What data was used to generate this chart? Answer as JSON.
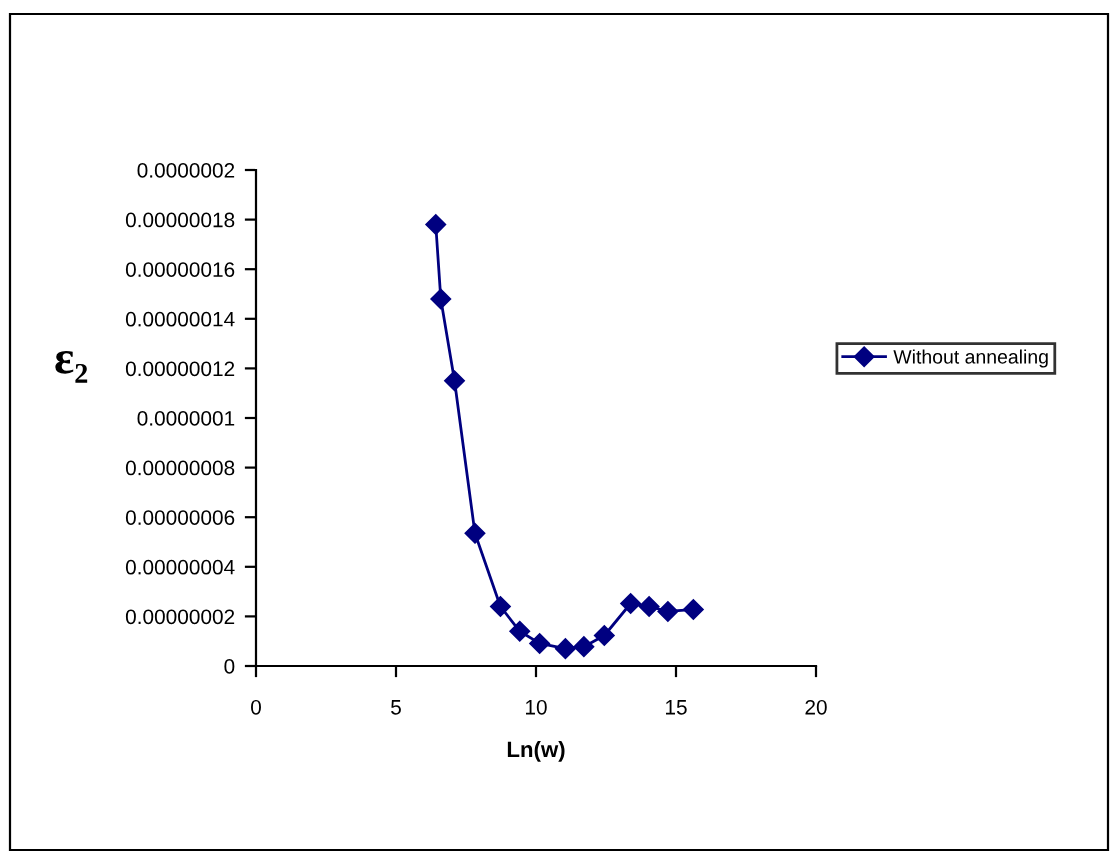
{
  "chart_data": {
    "type": "line",
    "xlabel": "Ln(w)",
    "ylabel": "ε₂",
    "x": [
      6.42,
      6.6,
      7.09,
      7.82,
      8.73,
      9.42,
      10.13,
      11.05,
      11.71,
      12.44,
      13.38,
      14.04,
      14.71,
      15.62
    ],
    "series": [
      {
        "name": "Without annealing",
        "color": "#000080",
        "values": [
          1.78e-07,
          1.48e-07,
          1.15e-07,
          5.35e-08,
          2.4e-08,
          1.4e-08,
          9.1e-09,
          7e-09,
          7.8e-09,
          1.23e-08,
          2.52e-08,
          2.4e-08,
          2.2e-08,
          2.28e-08
        ]
      }
    ],
    "xlim": [
      0,
      20
    ],
    "xticks": [
      0,
      5,
      10,
      15,
      20
    ],
    "ylim": [
      0,
      2e-07
    ],
    "yticks": [
      {
        "value": 0,
        "label": "0"
      },
      {
        "value": 2e-08,
        "label": "0.00000002"
      },
      {
        "value": 4e-08,
        "label": "0.00000004"
      },
      {
        "value": 6e-08,
        "label": "0.00000006"
      },
      {
        "value": 8e-08,
        "label": "0.00000008"
      },
      {
        "value": 1e-07,
        "label": "0.0000001"
      },
      {
        "value": 1.2e-07,
        "label": "0.00000012"
      },
      {
        "value": 1.4e-07,
        "label": "0.00000014"
      },
      {
        "value": 1.6e-07,
        "label": "0.00000016"
      },
      {
        "value": 1.8e-07,
        "label": "0.00000018"
      },
      {
        "value": 2e-07,
        "label": "0.0000002"
      }
    ],
    "grid": false,
    "legend": "right",
    "marker": "diamond",
    "line_style": "solid"
  }
}
